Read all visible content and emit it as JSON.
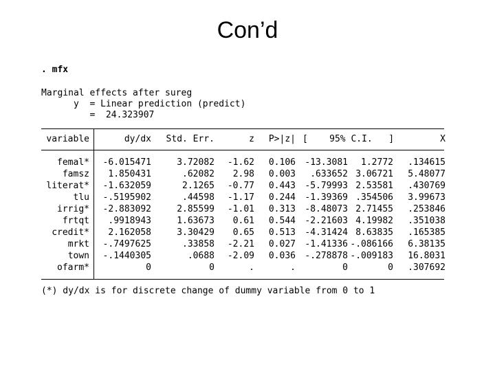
{
  "title": "Con’d",
  "command": ". mfx",
  "header": {
    "line1": "Marginal effects after sureg",
    "line2": "      y  = Linear prediction (predict)",
    "line3": "         =  24.323907"
  },
  "columns": {
    "variable": "variable",
    "dydx": "dy/dx",
    "se": "Std. Err.",
    "z": "z",
    "p": "P>|z|",
    "ci": "[    95% C.I.   ]",
    "x": "X"
  },
  "rows": [
    {
      "variable": "femal*",
      "dydx": "-6.015471",
      "se": "3.72082",
      "z": "-1.62",
      "p": "0.106",
      "lo": "-13.3081",
      "hi": "1.2772",
      "x": ".134615"
    },
    {
      "variable": "famsz",
      "dydx": "1.850431",
      "se": ".62082",
      "z": "2.98",
      "p": "0.003",
      "lo": ".633652",
      "hi": "3.06721",
      "x": "5.48077"
    },
    {
      "variable": "literat*",
      "dydx": "-1.632059",
      "se": "2.1265",
      "z": "-0.77",
      "p": "0.443",
      "lo": "-5.79993",
      "hi": "2.53581",
      "x": ".430769"
    },
    {
      "variable": "tlu",
      "dydx": "-.5195902",
      "se": ".44598",
      "z": "-1.17",
      "p": "0.244",
      "lo": "-1.39369",
      "hi": ".354506",
      "x": "3.99673"
    },
    {
      "variable": "irrig*",
      "dydx": "-2.883092",
      "se": "2.85599",
      "z": "-1.01",
      "p": "0.313",
      "lo": "-8.48073",
      "hi": "2.71455",
      "x": ".253846"
    },
    {
      "variable": "frtqt",
      "dydx": ".9918943",
      "se": "1.63673",
      "z": "0.61",
      "p": "0.544",
      "lo": "-2.21603",
      "hi": "4.19982",
      "x": ".351038"
    },
    {
      "variable": "credit*",
      "dydx": "2.162058",
      "se": "3.30429",
      "z": "0.65",
      "p": "0.513",
      "lo": "-4.31424",
      "hi": "8.63835",
      "x": ".165385"
    },
    {
      "variable": "mrkt",
      "dydx": "-.7497625",
      "se": ".33858",
      "z": "-2.21",
      "p": "0.027",
      "lo": "-1.41336",
      "hi": "-.086166",
      "x": "6.38135"
    },
    {
      "variable": "town",
      "dydx": "-.1440305",
      "se": ".0688",
      "z": "-2.09",
      "p": "0.036",
      "lo": "-.278878",
      "hi": "-.009183",
      "x": "16.8031"
    },
    {
      "variable": "ofarm*",
      "dydx": "0",
      "se": "0",
      "z": ".",
      "p": ".",
      "lo": "0",
      "hi": "0",
      "x": ".307692"
    }
  ],
  "footnote": "(*) dy/dx is for discrete change of dummy variable from 0 to 1"
}
